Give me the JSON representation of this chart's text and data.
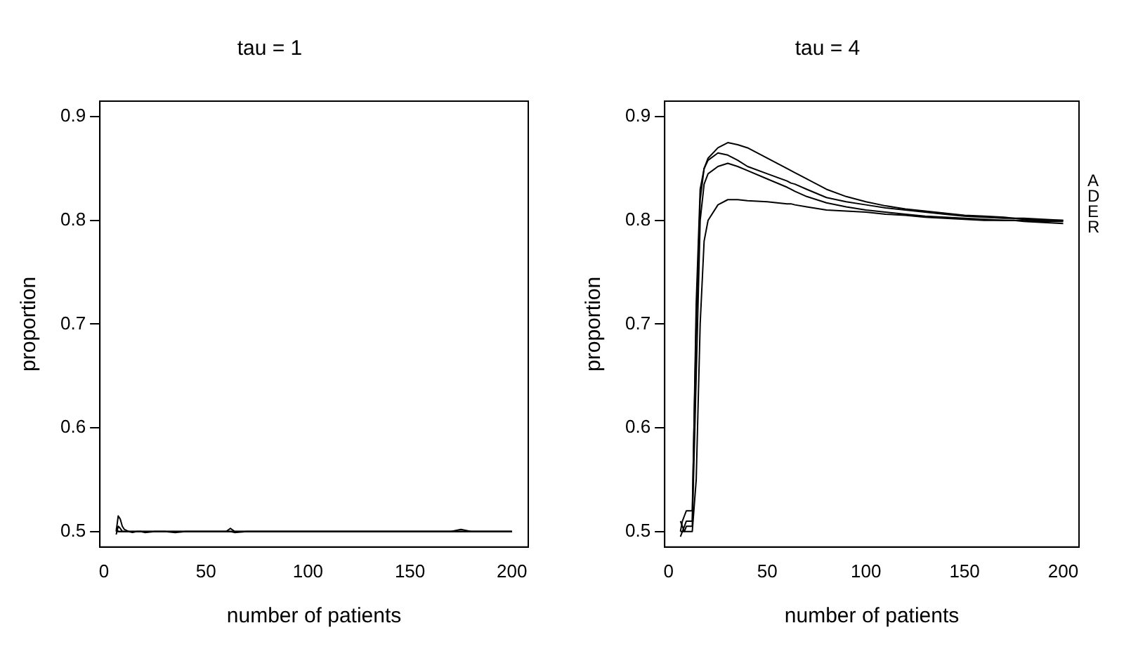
{
  "chart_data": [
    {
      "type": "line",
      "title": "tau = 1",
      "xlabel": "number of patients",
      "ylabel": "proportion",
      "xlim": [
        -2,
        208
      ],
      "ylim": [
        0.485,
        0.915
      ],
      "xticks": [
        0,
        50,
        100,
        150,
        200
      ],
      "yticks": [
        0.5,
        0.6,
        0.7,
        0.8,
        0.9
      ],
      "grid": false,
      "legend": false,
      "marker": "none",
      "x": [
        6,
        7,
        8,
        9,
        10,
        12,
        14,
        16,
        18,
        20,
        25,
        30,
        35,
        40,
        50,
        60,
        62,
        64,
        70,
        80,
        90,
        100,
        110,
        120,
        130,
        140,
        150,
        160,
        170,
        175,
        180,
        190,
        200
      ],
      "series": [
        {
          "color": "#000000",
          "values": [
            0.5,
            0.515,
            0.512,
            0.505,
            0.502,
            0.5,
            0.5,
            0.5,
            0.5,
            0.5,
            0.5,
            0.5,
            0.5,
            0.5,
            0.5,
            0.5,
            0.503,
            0.5,
            0.5,
            0.5,
            0.5,
            0.5,
            0.5,
            0.5,
            0.5,
            0.5,
            0.5,
            0.5,
            0.5,
            0.5,
            0.5,
            0.5,
            0.5
          ]
        },
        {
          "color": "#000000",
          "values": [
            0.497,
            0.505,
            0.503,
            0.5,
            0.5,
            0.5,
            0.499,
            0.5,
            0.5,
            0.499,
            0.5,
            0.5,
            0.499,
            0.5,
            0.5,
            0.5,
            0.5,
            0.499,
            0.5,
            0.5,
            0.5,
            0.5,
            0.5,
            0.5,
            0.5,
            0.5,
            0.5,
            0.5,
            0.5,
            0.502,
            0.5,
            0.5,
            0.5
          ]
        },
        {
          "color": "#000000",
          "values": [
            0.503,
            0.5,
            0.5,
            0.5,
            0.5,
            0.5,
            0.5,
            0.5,
            0.5,
            0.5,
            0.5,
            0.5,
            0.5,
            0.5,
            0.5,
            0.5,
            0.5,
            0.5,
            0.5,
            0.5,
            0.5,
            0.5,
            0.5,
            0.5,
            0.5,
            0.5,
            0.5,
            0.5,
            0.5,
            0.5,
            0.5,
            0.5,
            0.5
          ]
        },
        {
          "color": "#000000",
          "values": [
            0.5,
            0.5,
            0.5,
            0.5,
            0.5,
            0.5,
            0.5,
            0.5,
            0.5,
            0.5,
            0.5,
            0.5,
            0.5,
            0.5,
            0.5,
            0.5,
            0.5,
            0.5,
            0.5,
            0.5,
            0.5,
            0.5,
            0.5,
            0.5,
            0.5,
            0.5,
            0.5,
            0.5,
            0.5,
            0.5,
            0.5,
            0.5,
            0.5
          ]
        }
      ]
    },
    {
      "type": "line",
      "title": "tau = 4",
      "xlabel": "number of patients",
      "ylabel": "proportion",
      "xlim": [
        -2,
        208
      ],
      "ylim": [
        0.485,
        0.915
      ],
      "xticks": [
        0,
        50,
        100,
        150,
        200
      ],
      "yticks": [
        0.5,
        0.6,
        0.7,
        0.8,
        0.9
      ],
      "grid": false,
      "legend": false,
      "marker": "none",
      "x": [
        6,
        7,
        8,
        9,
        10,
        12,
        14,
        16,
        18,
        20,
        25,
        30,
        35,
        40,
        50,
        60,
        62,
        64,
        70,
        80,
        90,
        100,
        110,
        120,
        130,
        140,
        150,
        160,
        170,
        175,
        180,
        190,
        200
      ],
      "series": [
        {
          "name": "A",
          "color": "#000000",
          "values": [
            0.5,
            0.51,
            0.515,
            0.52,
            0.52,
            0.52,
            0.7,
            0.82,
            0.85,
            0.86,
            0.87,
            0.875,
            0.873,
            0.87,
            0.86,
            0.85,
            0.848,
            0.846,
            0.84,
            0.83,
            0.823,
            0.818,
            0.814,
            0.811,
            0.809,
            0.807,
            0.805,
            0.804,
            0.803,
            0.802,
            0.802,
            0.801,
            0.8
          ]
        },
        {
          "name": "D",
          "color": "#000000",
          "values": [
            0.495,
            0.5,
            0.505,
            0.51,
            0.51,
            0.51,
            0.72,
            0.83,
            0.85,
            0.858,
            0.865,
            0.863,
            0.858,
            0.852,
            0.845,
            0.838,
            0.836,
            0.835,
            0.83,
            0.822,
            0.818,
            0.815,
            0.812,
            0.81,
            0.808,
            0.806,
            0.804,
            0.803,
            0.802,
            0.802,
            0.801,
            0.8,
            0.8
          ]
        },
        {
          "name": "E",
          "color": "#000000",
          "values": [
            0.5,
            0.5,
            0.5,
            0.505,
            0.505,
            0.505,
            0.65,
            0.8,
            0.835,
            0.845,
            0.852,
            0.855,
            0.852,
            0.848,
            0.84,
            0.832,
            0.83,
            0.828,
            0.823,
            0.817,
            0.813,
            0.81,
            0.808,
            0.806,
            0.804,
            0.803,
            0.802,
            0.801,
            0.8,
            0.8,
            0.8,
            0.799,
            0.799
          ]
        },
        {
          "name": "R",
          "color": "#000000",
          "values": [
            0.51,
            0.505,
            0.5,
            0.5,
            0.5,
            0.5,
            0.55,
            0.7,
            0.78,
            0.8,
            0.815,
            0.82,
            0.82,
            0.819,
            0.818,
            0.816,
            0.816,
            0.815,
            0.813,
            0.81,
            0.809,
            0.808,
            0.806,
            0.805,
            0.803,
            0.802,
            0.801,
            0.8,
            0.8,
            0.8,
            0.799,
            0.798,
            0.797
          ]
        }
      ]
    }
  ]
}
